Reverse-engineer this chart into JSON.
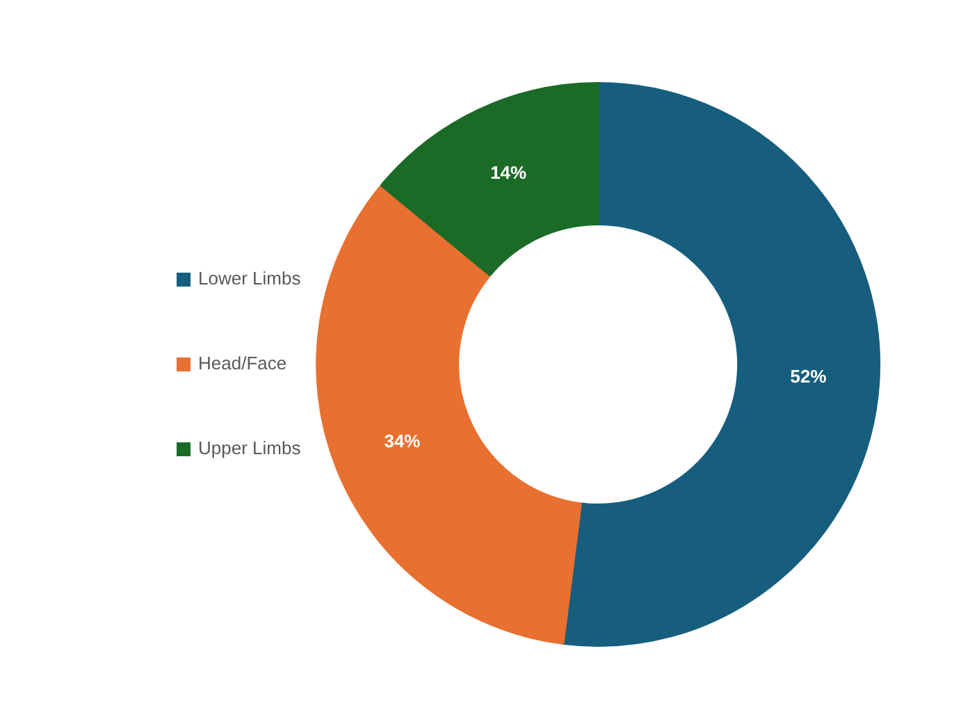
{
  "chart_data": {
    "type": "donut",
    "categories": [
      "Lower Limbs",
      "Head/Face",
      "Upper Limbs"
    ],
    "values": [
      52,
      34,
      14
    ],
    "colors": [
      "#175e7e",
      "#e87030",
      "#1b6b27"
    ],
    "value_labels": [
      "52%",
      "34%",
      "14%"
    ],
    "legend": "left"
  }
}
